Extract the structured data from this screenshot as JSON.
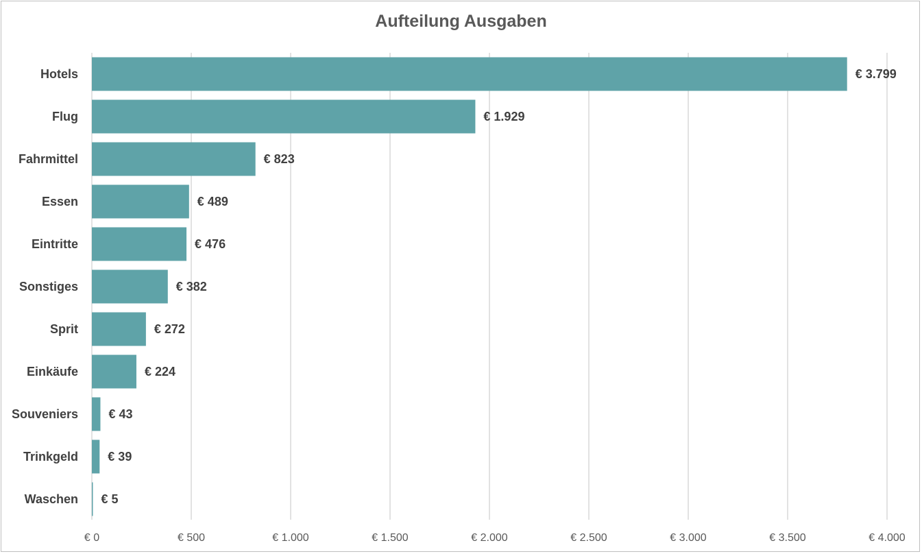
{
  "chart_data": {
    "type": "bar",
    "orientation": "horizontal",
    "title": "Aufteilung Ausgaben",
    "xlabel": "",
    "ylabel": "",
    "xlim": [
      0,
      4000
    ],
    "x_tick_values": [
      0,
      500,
      1000,
      1500,
      2000,
      2500,
      3000,
      3500,
      4000
    ],
    "x_tick_labels": [
      "€ 0",
      "€ 500",
      "€ 1.000",
      "€ 1.500",
      "€ 2.000",
      "€ 2.500",
      "€ 3.000",
      "€ 3.500",
      "€ 4.000"
    ],
    "categories": [
      "Hotels",
      "Flug",
      "Fahrmittel",
      "Essen",
      "Eintritte",
      "Sonstiges",
      "Sprit",
      "Einkäufe",
      "Souveniers",
      "Trinkgeld",
      "Waschen"
    ],
    "values": [
      3799,
      1929,
      823,
      489,
      476,
      382,
      272,
      224,
      43,
      39,
      5
    ],
    "data_labels": [
      "€ 3.799",
      "€ 1.929",
      "€ 823",
      "€ 489",
      "€ 476",
      "€ 382",
      "€ 272",
      "€ 224",
      "€ 43",
      "€ 39",
      "€ 5"
    ],
    "grid": true,
    "legend": "none",
    "bar_color": "#5FA3A8"
  }
}
